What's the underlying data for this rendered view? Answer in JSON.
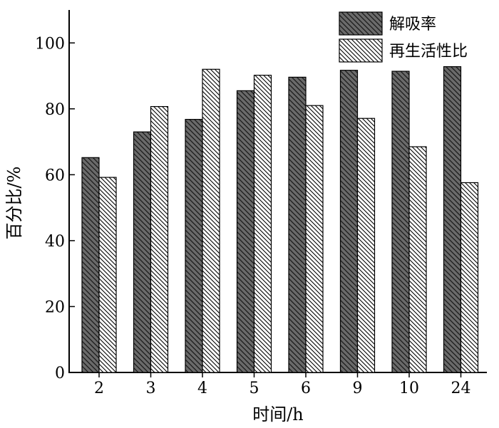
{
  "chart_data": {
    "type": "bar",
    "title": "",
    "xlabel": "时间/h",
    "ylabel": "百分比/%",
    "categories": [
      "2",
      "3",
      "4",
      "5",
      "6",
      "9",
      "10",
      "24"
    ],
    "series": [
      {
        "name": "解吸率",
        "values": [
          65.2,
          73.0,
          76.8,
          85.5,
          89.6,
          91.7,
          91.4,
          92.8
        ],
        "color": "#6a6a6a",
        "pattern": "dense-backslash-hatch"
      },
      {
        "name": "再生活性比",
        "values": [
          59.2,
          80.7,
          92.0,
          90.2,
          81.0,
          77.1,
          68.5,
          57.6
        ],
        "color": "#ffffff",
        "pattern": "backslash-hatch"
      }
    ],
    "ylim": [
      0,
      110
    ],
    "yticks": [
      0,
      20,
      40,
      60,
      80,
      100
    ],
    "grid": false,
    "legend_position": "top-right"
  }
}
